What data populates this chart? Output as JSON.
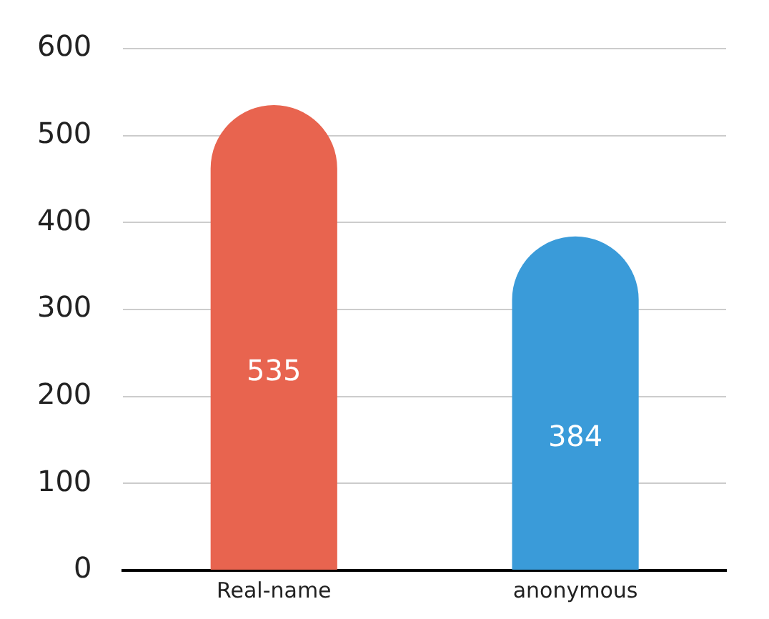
{
  "chart_data": {
    "type": "bar",
    "categories": [
      "Real-name",
      "anonymous"
    ],
    "values": [
      535,
      384
    ],
    "colors": [
      "#e8644f",
      "#3a9bd9"
    ],
    "ylim": [
      0,
      600
    ],
    "yticks": [
      0,
      100,
      200,
      300,
      400,
      500,
      600
    ],
    "grid": "y",
    "data_labels": true
  }
}
